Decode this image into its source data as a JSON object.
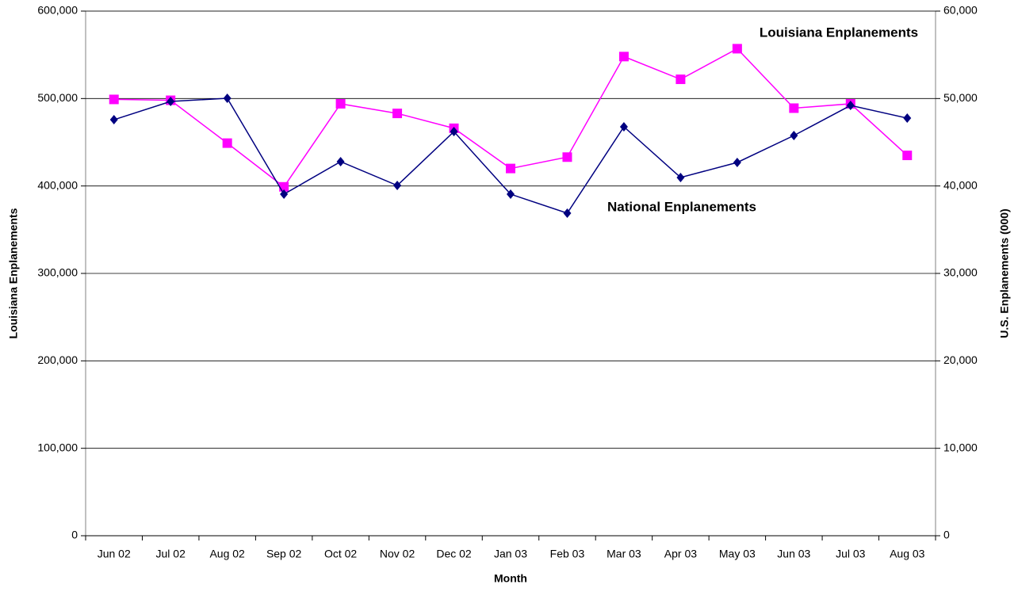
{
  "chart_data": {
    "type": "line",
    "categories": [
      "Jun 02",
      "Jul 02",
      "Aug 02",
      "Sep 02",
      "Oct 02",
      "Nov 02",
      "Dec 02",
      "Jan 03",
      "Feb 03",
      "Mar 03",
      "Apr 03",
      "May 03",
      "Jun 03",
      "Jul 03",
      "Aug 03"
    ],
    "x_label": "Month",
    "y_label": "Louisiana Enplanements",
    "y2_label": "U.S. Enplanements (000)",
    "series": [
      {
        "name": "Louisiana Enplanements",
        "color": "#ff00ff",
        "marker": "square",
        "values": [
          499000,
          498000,
          449000,
          399000,
          494000,
          483000,
          466000,
          420000,
          433000,
          548000,
          522000,
          557000,
          489000,
          494000,
          435000
        ]
      },
      {
        "name": "National Enplanements",
        "color": "#000080",
        "marker": "diamond",
        "axis": "y2",
        "values": [
          47580,
          49670,
          50030,
          39060,
          42780,
          40060,
          46220,
          39060,
          36890,
          46770,
          40970,
          42690,
          45770,
          49210,
          47760
        ]
      }
    ],
    "ylim": [
      0,
      600000
    ],
    "yticks": [
      0,
      {
        "value": 100000,
        "label": "100,000"
      },
      {
        "value": 200000,
        "label": "200,000"
      },
      {
        "value": 300000,
        "label": "300,000"
      },
      {
        "value": 400000,
        "label": "400,000"
      },
      {
        "value": 500000,
        "label": "500,000"
      },
      {
        "value": 600000,
        "label": "600,000"
      }
    ],
    "y2lim": [
      0,
      60000
    ],
    "y2ticks": [
      0,
      {
        "value": 10000,
        "label": "10,000"
      },
      {
        "value": 20000,
        "label": "20,000"
      },
      {
        "value": 30000,
        "label": "30,000"
      },
      {
        "value": 40000,
        "label": "40,000"
      },
      {
        "value": 50000,
        "label": "50,000"
      },
      {
        "value": 60000,
        "label": "60,000"
      }
    ],
    "grid": true
  }
}
